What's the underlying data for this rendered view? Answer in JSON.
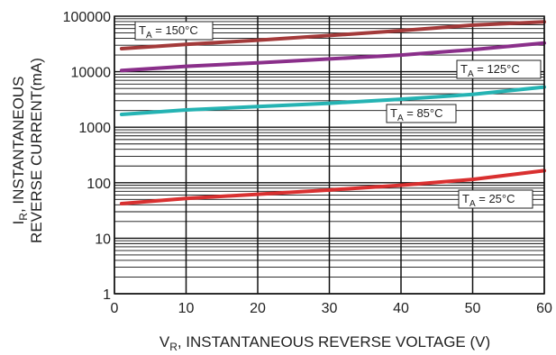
{
  "chart_data": {
    "type": "line",
    "xlabel": {
      "main": "V",
      "sub": "R",
      "rest": ", INSTANTANEOUS REVERSE VOLTAGE (V)"
    },
    "ylabel": {
      "line1_main": "I",
      "line1_sub": "R",
      "line1_rest": ", INSTANTANEOUS",
      "line2": "REVERSE CURRENT(mA)"
    },
    "xlim": [
      0,
      60
    ],
    "ylim": [
      1,
      100000
    ],
    "yscale": "log",
    "grid": true,
    "x_ticks": [
      "0",
      "10",
      "20",
      "30",
      "40",
      "50",
      "60"
    ],
    "y_ticks": [
      "1",
      "10",
      "100",
      "1000",
      "10000",
      "100000"
    ],
    "series": [
      {
        "name": "T_A = 150°C",
        "label_main": "T",
        "label_sub": "A",
        "label_rest": " = 150°C",
        "color": "#a33a3a",
        "x": [
          1,
          10,
          20,
          30,
          40,
          50,
          60
        ],
        "y": [
          26000,
          31000,
          37000,
          45000,
          55000,
          69000,
          79000
        ]
      },
      {
        "name": "T_A = 125°C",
        "label_main": "T",
        "label_sub": "A",
        "label_rest": " = 125°C",
        "color": "#8a2f8a",
        "x": [
          1,
          10,
          20,
          30,
          40,
          50,
          60
        ],
        "y": [
          10500,
          12500,
          14500,
          17000,
          20000,
          25000,
          33000
        ]
      },
      {
        "name": "T_A = 85°C",
        "label_main": "T",
        "label_sub": "A",
        "label_rest": " = 85°C",
        "color": "#25b3b3",
        "x": [
          1,
          10,
          20,
          30,
          40,
          50,
          60
        ],
        "y": [
          1700,
          2050,
          2350,
          2700,
          3200,
          3900,
          5300
        ]
      },
      {
        "name": "T_A = 25°C",
        "label_main": "T",
        "label_sub": "A",
        "label_rest": " = 25°C",
        "color": "#d93030",
        "x": [
          1,
          10,
          20,
          30,
          40,
          50,
          60
        ],
        "y": [
          42,
          52,
          62,
          74,
          90,
          115,
          165
        ]
      }
    ]
  }
}
